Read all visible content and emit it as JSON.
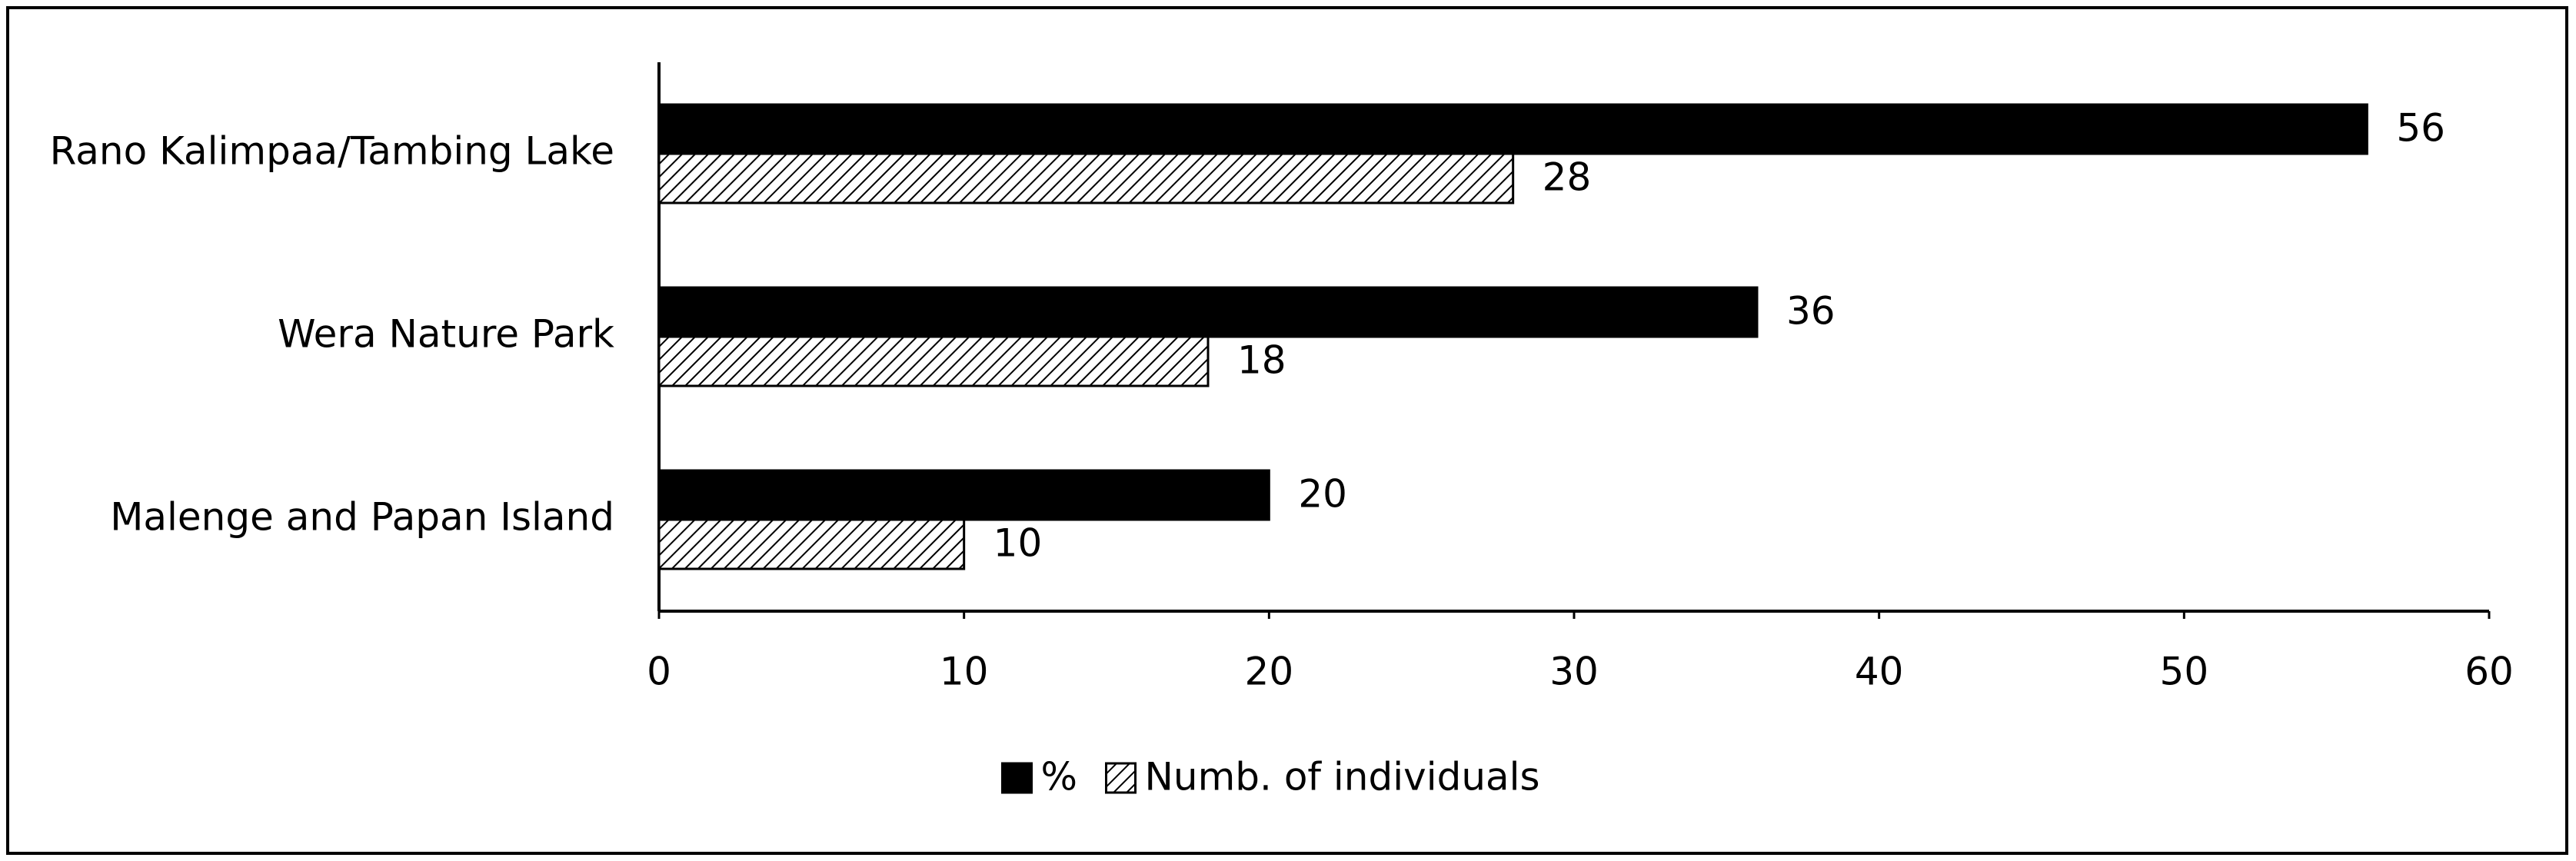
{
  "chart_data": {
    "type": "bar",
    "orientation": "horizontal",
    "categories": [
      "Rano Kalimpaa/Tambing Lake",
      "Wera Nature Park",
      "Malenge and Papan Island"
    ],
    "series": [
      {
        "name": "%",
        "color": "#000000",
        "pattern": "solid",
        "values": [
          56,
          36,
          20
        ]
      },
      {
        "name": "Numb. of individuals",
        "color": "#000000",
        "pattern": "hatch",
        "values": [
          28,
          18,
          10
        ]
      }
    ],
    "xlim": [
      0,
      60
    ],
    "xticks": [
      0,
      10,
      20,
      30,
      40,
      50,
      60
    ],
    "grid": false,
    "legend": "bottom",
    "data_labels": true
  }
}
